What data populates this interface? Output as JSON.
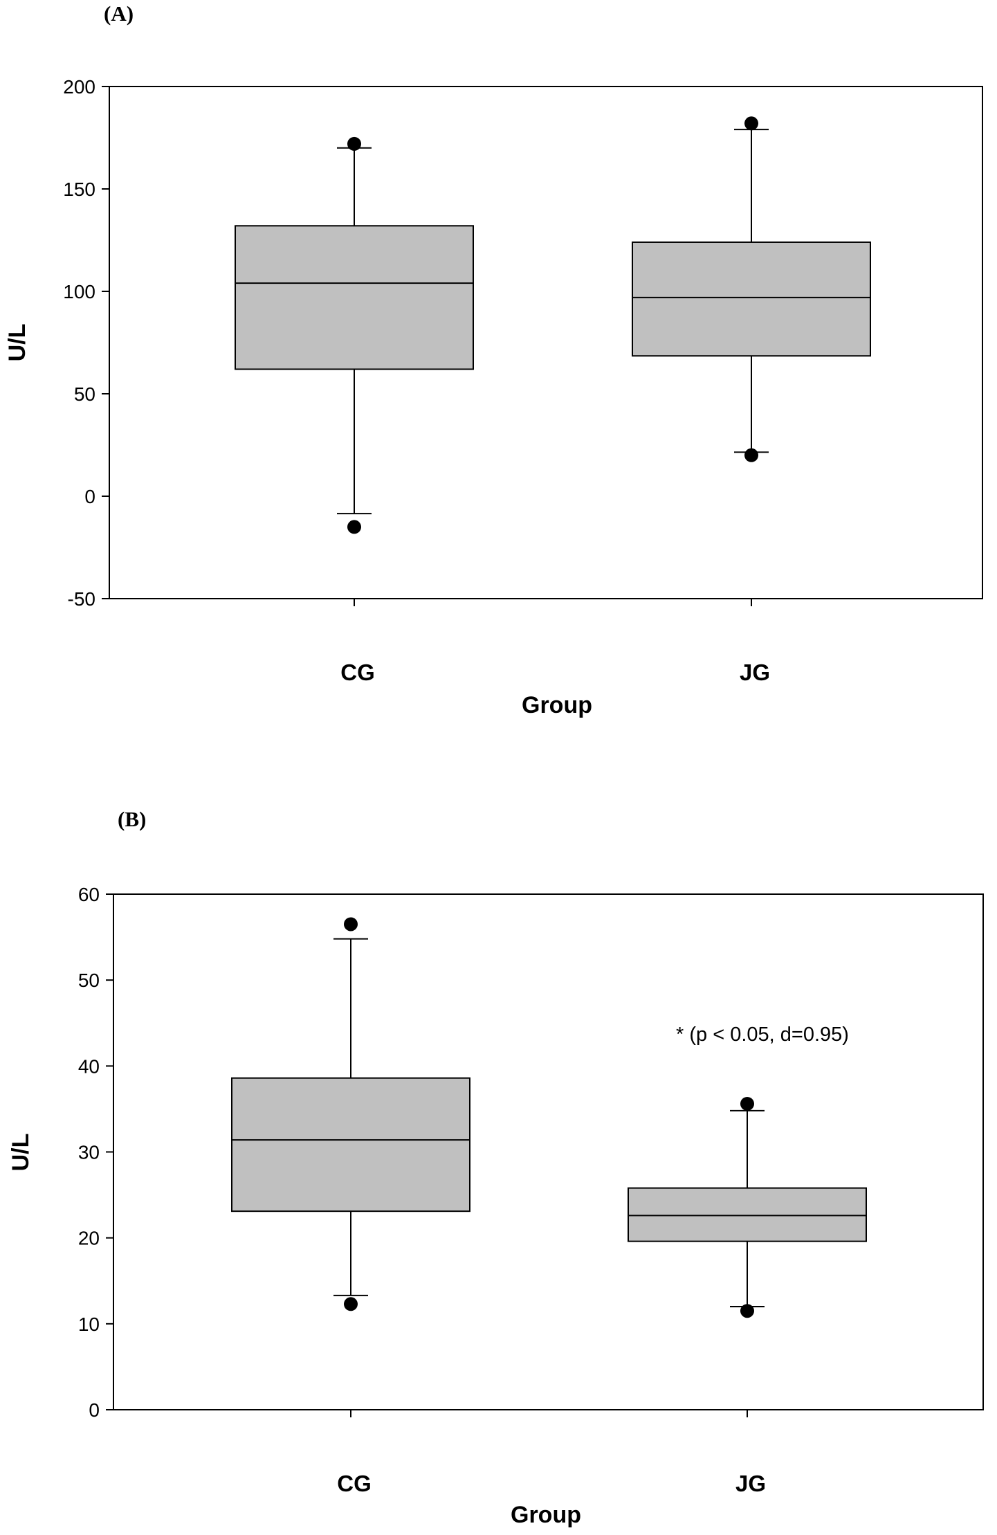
{
  "chart_data": [
    {
      "type": "box",
      "panel_label": "(A)",
      "xlabel": "Group",
      "ylabel": "U/L",
      "ylim": [
        -50,
        200
      ],
      "yticks": [
        -50,
        0,
        50,
        100,
        150,
        200
      ],
      "categories": [
        "CG",
        "JG"
      ],
      "box_color": "#c0c0c0",
      "grid": false,
      "boxes": [
        {
          "category": "CG",
          "whisker_low": -8.5,
          "q1": 62,
          "median": 104,
          "q3": 132,
          "whisker_high": 170,
          "outliers": [
            -15,
            172
          ]
        },
        {
          "category": "JG",
          "whisker_low": 21.5,
          "q1": 68.5,
          "median": 97,
          "q3": 124,
          "whisker_high": 179,
          "outliers": [
            20,
            182
          ]
        }
      ],
      "annotation": ""
    },
    {
      "type": "box",
      "panel_label": "(B)",
      "xlabel": "Group",
      "ylabel": "U/L",
      "ylim": [
        0,
        60
      ],
      "yticks": [
        0,
        10,
        20,
        30,
        40,
        50,
        60
      ],
      "categories": [
        "CG",
        "JG"
      ],
      "box_color": "#c0c0c0",
      "grid": false,
      "boxes": [
        {
          "category": "CG",
          "whisker_low": 13.3,
          "q1": 23.1,
          "median": 31.4,
          "q3": 38.6,
          "whisker_high": 54.8,
          "outliers": [
            12.3,
            56.5
          ]
        },
        {
          "category": "JG",
          "whisker_low": 12,
          "q1": 19.6,
          "median": 22.6,
          "q3": 25.8,
          "whisker_high": 34.8,
          "outliers": [
            11.5,
            35.6
          ]
        }
      ],
      "annotation": "* (p < 0.05, d=0.95)"
    }
  ]
}
